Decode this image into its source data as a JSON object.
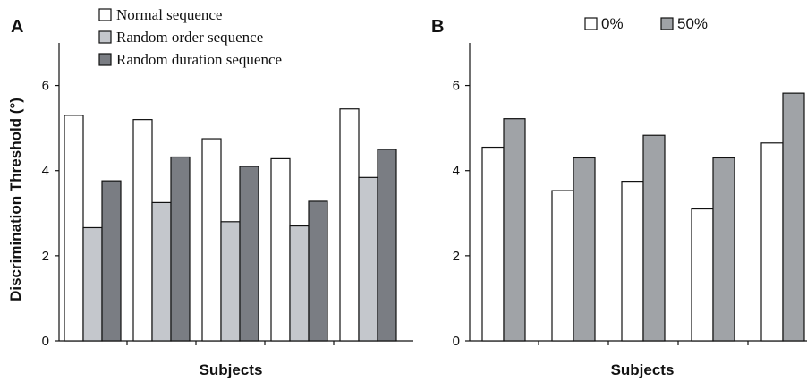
{
  "colors": {
    "white": "#ffffff",
    "light_gray": "#c4c7cc",
    "dark_gray": "#7a7d83",
    "mid_gray": "#a0a3a7"
  },
  "chart_data": [
    {
      "type": "bar",
      "panel": "A",
      "categories": [
        "",
        "",
        "",
        "",
        ""
      ],
      "series": [
        {
          "name": "Normal sequence",
          "color": "#ffffff",
          "values": [
            5.3,
            5.2,
            4.75,
            4.28,
            5.45
          ]
        },
        {
          "name": "Random order sequence",
          "color": "#c4c7cc",
          "values": [
            2.66,
            3.25,
            2.8,
            2.7,
            3.84
          ]
        },
        {
          "name": "Random duration sequence",
          "color": "#7a7d83",
          "values": [
            3.76,
            4.32,
            4.1,
            3.28,
            4.5
          ]
        }
      ],
      "xlabel": "Subjects",
      "ylabel": "Discrimination Threshold (°)",
      "ylim": [
        0,
        7
      ],
      "yticks": [
        "0",
        "2",
        "4",
        "6"
      ],
      "legend_position": "top"
    },
    {
      "type": "bar",
      "panel": "B",
      "categories": [
        "",
        "",
        "",
        "",
        ""
      ],
      "series": [
        {
          "name": "0%",
          "color": "#ffffff",
          "values": [
            4.55,
            3.53,
            3.75,
            3.1,
            4.65
          ]
        },
        {
          "name": "50%",
          "color": "#a0a3a7",
          "values": [
            5.22,
            4.3,
            4.83,
            4.3,
            5.82
          ]
        }
      ],
      "xlabel": "Subjects",
      "ylabel": "",
      "ylim": [
        0,
        7
      ],
      "yticks": [
        "0",
        "2",
        "4",
        "6"
      ],
      "legend_position": "top"
    }
  ]
}
